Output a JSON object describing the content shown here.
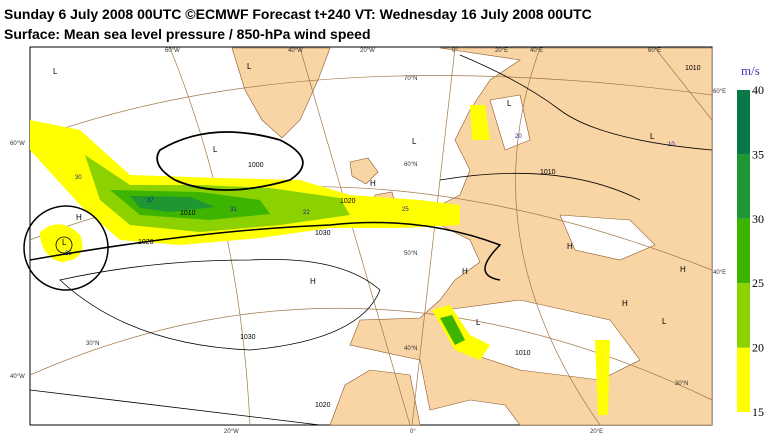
{
  "header": {
    "title": "Sunday 6 July 2008 00UTC ©ECMWF Forecast t+240 VT: Wednesday 16 July 2008 00UTC",
    "subtitle": "Surface: Mean sea level pressure / 850-hPa wind speed"
  },
  "colorbar": {
    "unit": "m/s",
    "ticks": [
      "15",
      "20",
      "25",
      "30",
      "35",
      "40"
    ],
    "colors": [
      "#ffff00",
      "#8cd200",
      "#3cb400",
      "#1e9632",
      "#0a7846"
    ]
  },
  "map": {
    "pressure_centers": [
      "L",
      "L",
      "L",
      "L",
      "L",
      "L",
      "H",
      "H",
      "L",
      "H",
      "H",
      "H",
      "H",
      "L",
      "H",
      "L"
    ],
    "isobar_labels": [
      "1010",
      "1010",
      "1000",
      "1010",
      "1020",
      "1020",
      "1030",
      "1030",
      "1020",
      "1010"
    ],
    "wind_labels": [
      "37",
      "31",
      "30",
      "25",
      "10",
      "20",
      "22",
      "25"
    ],
    "graticule_labels": [
      "60°W",
      "40°W",
      "20°W",
      "0°",
      "20°E",
      "40°E",
      "60°E",
      "70°N",
      "60°N",
      "50°N",
      "40°N",
      "60°W",
      "40°W",
      "60°E",
      "40°E",
      "20°W",
      "0°",
      "20°E",
      "30°N",
      "30°N"
    ]
  }
}
